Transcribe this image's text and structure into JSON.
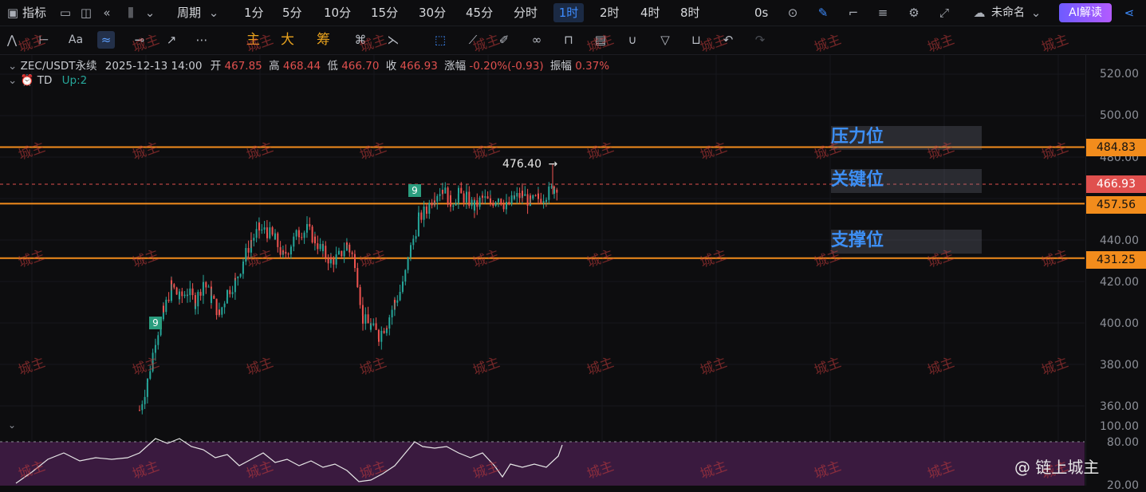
{
  "top_toolbar": {
    "indicator_label": "指标",
    "period_label": "周期",
    "timeframes": [
      "1分",
      "5分",
      "10分",
      "15分",
      "30分",
      "45分",
      "分时",
      "1时",
      "2时",
      "4时",
      "8时"
    ],
    "active_timeframe": "1时",
    "countdown": "0s",
    "layout_name": "未命名",
    "ai_button": "AI解读"
  },
  "drawing_toolbar": {
    "font_label": "Aa",
    "chip_main": "主",
    "chip_big": "大",
    "chip_chip": "筹"
  },
  "legend": {
    "symbol": "ZEC/USDT永续",
    "datetime": "2025-12-13 14:00",
    "open_label": "开",
    "open": "467.85",
    "high_label": "高",
    "high": "468.44",
    "low_label": "低",
    "low": "466.70",
    "close_label": "收",
    "close": "466.93",
    "change_label": "涨幅",
    "change": "-0.20%(-0.93)",
    "amp_label": "振幅",
    "amp": "0.37%",
    "indicator_name": "TD",
    "indicator_value": "Up:2"
  },
  "price_axis": {
    "ticks": [
      "520.00",
      "500.00",
      "480.00",
      "440.00",
      "420.00",
      "400.00",
      "380.00",
      "360.00"
    ],
    "rsi_ticks": [
      "100.00",
      "80.00",
      "20.00"
    ],
    "tags": {
      "resistance": "484.83",
      "current": "466.93",
      "key": "457.56",
      "support": "431.25"
    }
  },
  "annotations": {
    "resistance_label": "压力位",
    "key_label": "关键位",
    "support_label": "支撑位",
    "high_marker": "476.40",
    "td_count_a": "9",
    "td_count_b": "9"
  },
  "watermark": "城主",
  "footer_watermark": "@ 链上城主",
  "colors": {
    "up": "#26a69a",
    "down": "#ef5350",
    "level_line": "#f28c1c",
    "accent": "#3d8bfd",
    "current_tag": "#e0504e"
  }
}
